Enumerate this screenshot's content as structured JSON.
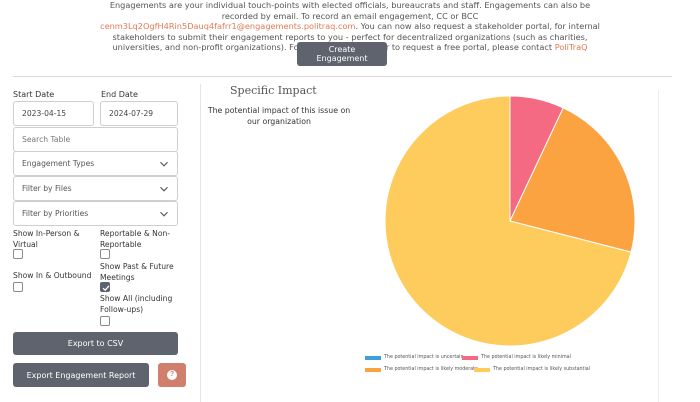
{
  "intro": {
    "line1": "Engagements are your individual touch-points with elected officials, bureaucrats and staff. Engagements can also be recorded by email.",
    "line2_prefix": "To record an email engagement, CC or BCC ",
    "email": "cenm3Lq2OgfH4Rin5Dauq4fafrr1@engagements.politraq.com",
    "line2_suffix": ". You can now also request a stakeholder portal, for internal stakeholders to submit their engagement reports to you - perfect for decentralized organizations (such as charities, universities, and non-profit organizations). For more information, or to request a free portal, please contact ",
    "support_link": "PoliTraQ Support",
    "line_end": "."
  },
  "create_button": "Create Engagement",
  "filters": {
    "start_date_label": "Start Date",
    "start_date": "2023-04-15",
    "end_date_label": "End Date",
    "end_date": "2024-07-29",
    "search_placeholder": "Search Table",
    "engagement_types": "Engagement Types",
    "filter_files": "Filter by Files",
    "filter_priorities": "Filter by Priorities"
  },
  "checkboxes": {
    "in_person": {
      "label": "Show In-Person & Virtual",
      "checked": false
    },
    "reportable": {
      "label": "Reportable & Non-Reportable",
      "checked": false
    },
    "past_future": {
      "label": "Show Past & Future Meetings",
      "checked": true
    },
    "in_outbound": {
      "label": "Show In & Outbound",
      "checked": false
    },
    "show_all": {
      "label": "Show All (including Follow-ups)",
      "checked": false
    }
  },
  "buttons": {
    "export_csv": "Export to CSV",
    "export_report": "Export Engagement Report",
    "help": "?"
  },
  "chart_data": {
    "type": "pie",
    "title": "Specific Impact",
    "subtitle": "The potential impact of this issue on our organization",
    "slices": [
      {
        "label": "The potential impact is uncertain",
        "value": 0,
        "color": "#3f9ee0"
      },
      {
        "label": "The potential impact is likely minimal",
        "value": 7,
        "color": "#f56a83"
      },
      {
        "label": "The potential impact is likely moderate",
        "value": 22,
        "color": "#fba241"
      },
      {
        "label": "The potential impact is likely substantial",
        "value": 71,
        "color": "#fdcc5d"
      }
    ],
    "legend_position": "bottom"
  }
}
